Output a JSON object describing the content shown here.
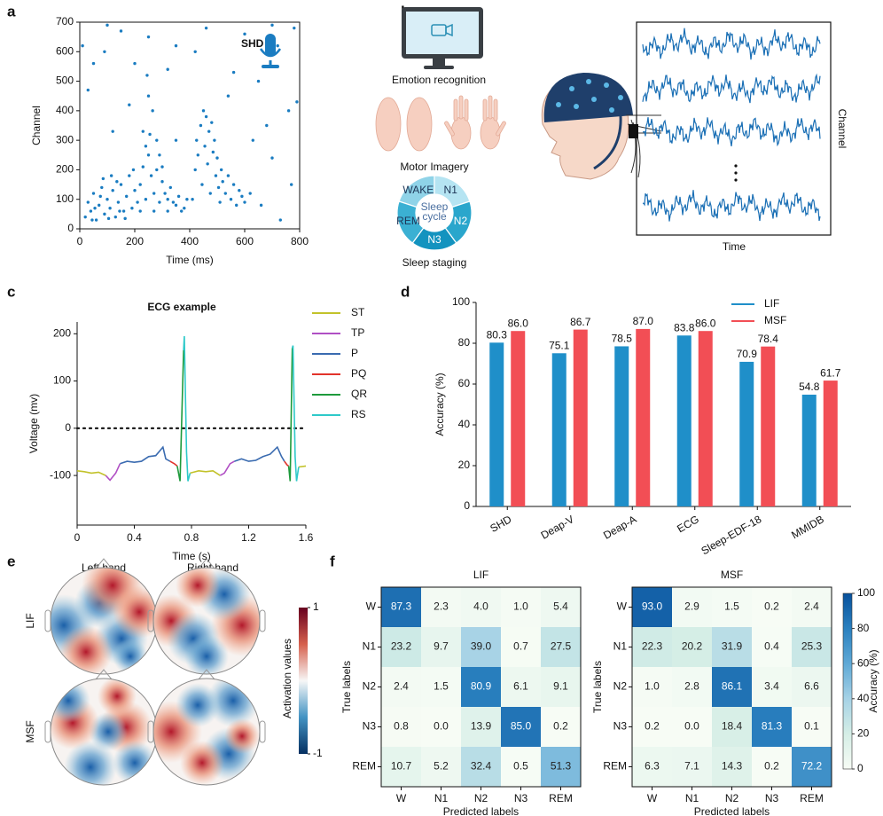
{
  "panel_labels": [
    "a",
    "b",
    "c",
    "d",
    "e",
    "f"
  ],
  "panel_b": {
    "tasks": [
      "Emotion recognition",
      "Motor Imagery",
      "Sleep staging"
    ],
    "sleep_cycle": {
      "center": [
        "Sleep",
        "cycle"
      ],
      "stages": [
        "WAKE",
        "N1",
        "N2",
        "N3",
        "REM"
      ]
    },
    "signal_axes": {
      "y": "Channel",
      "x": "Time"
    }
  },
  "panel_e": {
    "columns": [
      "Left hand",
      "Right hand"
    ],
    "rows": [
      "LIF",
      "MSF"
    ],
    "colorbar": {
      "label": "Activation values",
      "lim": [
        -1,
        1
      ],
      "ticks": [
        -1,
        1
      ]
    }
  },
  "chart_data": [
    {
      "type": "scatter",
      "xlabel": "Time (ms)",
      "ylabel": "Channel",
      "annotation": "SHD",
      "xlim": [
        0,
        800
      ],
      "xticks": [
        0,
        200,
        400,
        600,
        800
      ],
      "ylim": [
        0,
        700
      ],
      "yticks": [
        0,
        100,
        200,
        300,
        400,
        500,
        600,
        700
      ],
      "series": [
        {
          "color": "#1a7cc1",
          "x": [
            20,
            30,
            40,
            50,
            60,
            70,
            80,
            90,
            100,
            110,
            120,
            130,
            140,
            150,
            160,
            170,
            180,
            190,
            200,
            210,
            45,
            75,
            105,
            135,
            165,
            195,
            55,
            85,
            115,
            145,
            220,
            230,
            240,
            250,
            260,
            270,
            280,
            290,
            300,
            310,
            320,
            330,
            340,
            350,
            360,
            240,
            255,
            265,
            245,
            250,
            280,
            230,
            300,
            380,
            390,
            370,
            270,
            320,
            220,
            290,
            410,
            420,
            425,
            430,
            440,
            445,
            450,
            455,
            460,
            465,
            470,
            475,
            480,
            485,
            490,
            495,
            500,
            505,
            510,
            515,
            520,
            530,
            540,
            550,
            560,
            570,
            580,
            590,
            600,
            620,
            100,
            150,
            250,
            350,
            460,
            600,
            700,
            780,
            30,
            50,
            90,
            200,
            320,
            420,
            560,
            650,
            720,
            790,
            760,
            680,
            700,
            770,
            730,
            660,
            180,
            120,
            350,
            540,
            630,
            10
          ],
          "values": [
            40,
            90,
            60,
            120,
            30,
            80,
            140,
            50,
            100,
            70,
            130,
            40,
            90,
            150,
            60,
            110,
            180,
            70,
            130,
            90,
            30,
            110,
            35,
            160,
            35,
            200,
            70,
            170,
            180,
            60,
            150,
            210,
            100,
            250,
            180,
            120,
            200,
            90,
            160,
            120,
            100,
            140,
            90,
            80,
            110,
            280,
            320,
            400,
            520,
            450,
            300,
            330,
            210,
            70,
            100,
            60,
            60,
            60,
            60,
            250,
            100,
            200,
            300,
            250,
            350,
            150,
            400,
            280,
            380,
            220,
            330,
            120,
            360,
            260,
            300,
            180,
            240,
            140,
            90,
            200,
            160,
            120,
            180,
            100,
            150,
            80,
            130,
            110,
            90,
            120,
            690,
            670,
            650,
            620,
            680,
            660,
            690,
            680,
            470,
            560,
            600,
            560,
            540,
            600,
            530,
            500,
            620,
            430,
            400,
            350,
            240,
            150,
            30,
            80,
            420,
            330,
            300,
            450,
            300,
            620
          ]
        }
      ]
    },
    {
      "type": "line",
      "title": "ECG example",
      "xlabel": "Time (s)",
      "ylabel": "Voltage (mv)",
      "xlim": [
        0,
        1.6
      ],
      "xticks": [
        0,
        0.4,
        0.8,
        1.2,
        1.6
      ],
      "ylim": [
        -205,
        225
      ],
      "yticks": [
        -100,
        0,
        100,
        200
      ],
      "reference_line": 0,
      "series": [
        {
          "name": "ST",
          "color": "#c2c22a",
          "x": [
            0,
            0.05,
            0.1,
            0.15,
            0.2,
            null,
            0.79,
            0.85,
            0.9,
            0.95,
            1.0,
            null,
            1.55,
            1.6
          ],
          "values": [
            -90,
            -92,
            -95,
            -93,
            -100,
            null,
            -95,
            -90,
            -92,
            -90,
            -100,
            null,
            -82,
            -80
          ]
        },
        {
          "name": "TP",
          "color": "#b04fc4",
          "x": [
            0.2,
            0.23,
            0.27,
            0.3,
            null,
            1.0,
            1.03,
            1.07,
            1.1
          ],
          "values": [
            -100,
            -110,
            -95,
            -75,
            null,
            -100,
            -95,
            -75,
            -70
          ]
        },
        {
          "name": "P",
          "color": "#3a6bb0",
          "x": [
            0.3,
            0.35,
            0.4,
            0.45,
            0.5,
            0.55,
            0.6,
            0.62,
            0.65,
            null,
            1.1,
            1.15,
            1.2,
            1.25,
            1.3,
            1.35,
            1.4,
            1.43,
            1.45
          ],
          "values": [
            -75,
            -70,
            -72,
            -70,
            -60,
            -58,
            -40,
            -65,
            -70,
            null,
            -70,
            -65,
            -70,
            -68,
            -60,
            -55,
            -40,
            -60,
            -70
          ]
        },
        {
          "name": "PQ",
          "color": "#e2332b",
          "x": [
            0.65,
            0.68,
            0.7,
            null,
            1.45,
            1.47,
            1.48
          ],
          "values": [
            -70,
            -75,
            -80,
            null,
            -70,
            -78,
            -80
          ]
        },
        {
          "name": "QR",
          "color": "#1e9a3c",
          "x": [
            0.7,
            0.72,
            0.745,
            null,
            1.48,
            1.49,
            1.505
          ],
          "values": [
            -80,
            -112,
            165,
            null,
            -80,
            -112,
            170
          ]
        },
        {
          "name": "RS",
          "color": "#2ec9c9",
          "x": [
            0.745,
            0.75,
            0.765,
            0.775,
            0.79,
            null,
            1.505,
            1.51,
            1.525,
            1.535,
            1.55
          ],
          "values": [
            165,
            195,
            -50,
            -112,
            -95,
            null,
            170,
            175,
            -60,
            -112,
            -82
          ]
        }
      ]
    },
    {
      "type": "bar",
      "ylabel": "Accuracy (%)",
      "legend": "upper right",
      "categories": [
        "SHD",
        "Deap-V",
        "Deap-A",
        "ECG",
        "Sleep-EDF-18",
        "MMIDB"
      ],
      "ylim": [
        0,
        100
      ],
      "yticks": [
        0,
        20,
        40,
        60,
        80,
        100
      ],
      "series": [
        {
          "name": "LIF",
          "color": "#1f8fc9",
          "values": [
            80.3,
            75.1,
            78.5,
            83.8,
            70.9,
            54.8
          ],
          "value_labels": [
            "80.3",
            "75.1",
            "78.5",
            "83.8",
            "70.9",
            "54.8"
          ]
        },
        {
          "name": "MSF",
          "color": "#f24e55",
          "values": [
            86,
            86.7,
            87,
            86,
            78.4,
            61.7
          ],
          "value_labels": [
            "86.0",
            "86.7",
            "87.0",
            "86.0",
            "78.4",
            "61.7"
          ]
        }
      ]
    },
    {
      "type": "heatmap",
      "title": "LIF",
      "xlabel": "Predicted labels",
      "ylabel": "True labels",
      "x_categories": [
        "W",
        "N1",
        "N2",
        "N3",
        "REM"
      ],
      "y_categories": [
        "W",
        "N1",
        "N2",
        "N3",
        "REM"
      ],
      "clim": [
        0,
        100
      ],
      "values": [
        [
          87.3,
          2.3,
          4,
          1,
          5.4
        ],
        [
          23.2,
          9.7,
          39,
          0.7,
          27.5
        ],
        [
          2.4,
          1.5,
          80.9,
          6.1,
          9.1
        ],
        [
          0.8,
          0,
          13.9,
          85,
          0.2
        ],
        [
          10.7,
          5.2,
          32.4,
          0.5,
          51.3
        ]
      ],
      "value_labels": [
        [
          "87.3",
          "2.3",
          "4.0",
          "1.0",
          "5.4"
        ],
        [
          "23.2",
          "9.7",
          "39.0",
          "0.7",
          "27.5"
        ],
        [
          "2.4",
          "1.5",
          "80.9",
          "6.1",
          "9.1"
        ],
        [
          "0.8",
          "0.0",
          "13.9",
          "85.0",
          "0.2"
        ],
        [
          "10.7",
          "5.2",
          "32.4",
          "0.5",
          "51.3"
        ]
      ]
    },
    {
      "type": "heatmap",
      "title": "MSF",
      "xlabel": "Predicted labels",
      "ylabel": "True labels",
      "x_categories": [
        "W",
        "N1",
        "N2",
        "N3",
        "REM"
      ],
      "y_categories": [
        "W",
        "N1",
        "N2",
        "N3",
        "REM"
      ],
      "clim": [
        0,
        100
      ],
      "values": [
        [
          93,
          2.9,
          1.5,
          0.2,
          2.4
        ],
        [
          22.3,
          20.2,
          31.9,
          0.4,
          25.3
        ],
        [
          1,
          2.8,
          86.1,
          3.4,
          6.6
        ],
        [
          0.2,
          0,
          18.4,
          81.3,
          0.1
        ],
        [
          6.3,
          7.1,
          14.3,
          0.2,
          72.2
        ]
      ],
      "value_labels": [
        [
          "93.0",
          "2.9",
          "1.5",
          "0.2",
          "2.4"
        ],
        [
          "22.3",
          "20.2",
          "31.9",
          "0.4",
          "25.3"
        ],
        [
          "1.0",
          "2.8",
          "86.1",
          "3.4",
          "6.6"
        ],
        [
          "0.2",
          "0.0",
          "18.4",
          "81.3",
          "0.1"
        ],
        [
          "6.3",
          "7.1",
          "14.3",
          "0.2",
          "72.2"
        ]
      ],
      "colorbar": {
        "label": "Accuracy (%)",
        "ticks": [
          0,
          20,
          40,
          60,
          80,
          100
        ]
      }
    }
  ]
}
